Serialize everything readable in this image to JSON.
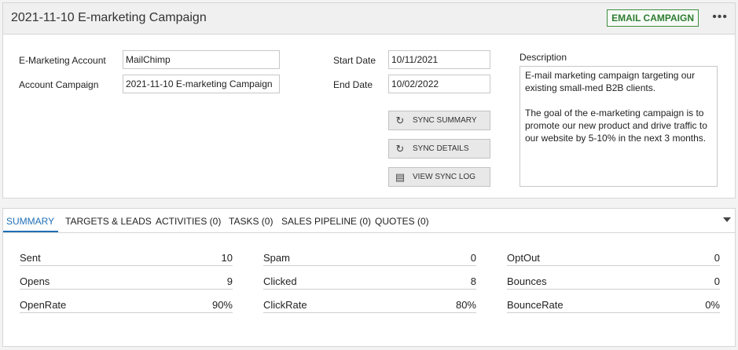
{
  "header": {
    "title": "2021-11-10 E-marketing Campaign",
    "badge": "EMAIL CAMPAIGN",
    "more_icon": "•••"
  },
  "form": {
    "emarketing_account_label": "E-Marketing Account",
    "emarketing_account_value": "MailChimp",
    "account_campaign_label": "Account Campaign",
    "account_campaign_value": "2021-11-10 E-marketing Campaign",
    "start_date_label": "Start Date",
    "start_date_value": "10/11/2021",
    "end_date_label": "End Date",
    "end_date_value": "10/02/2022",
    "description_label": "Description",
    "description_value": "E-mail marketing campaign targeting our existing small-med B2B clients.\n\nThe goal of the e-marketing campaign is to promote our new product and drive traffic to our website by 5-10% in the next 3 months."
  },
  "buttons": {
    "sync_summary": "SYNC SUMMARY",
    "sync_details": "SYNC DETAILS",
    "view_sync_log": "VIEW SYNC LOG"
  },
  "tabs": [
    {
      "label": "SUMMARY"
    },
    {
      "label": "TARGETS & LEADS"
    },
    {
      "label": "ACTIVITIES (0)"
    },
    {
      "label": "TASKS (0)"
    },
    {
      "label": "SALES PIPELINE (0)"
    },
    {
      "label": "QUOTES (0)"
    }
  ],
  "summary": {
    "sent": {
      "label": "Sent",
      "value": "10"
    },
    "opens": {
      "label": "Opens",
      "value": "9"
    },
    "openrate": {
      "label": "OpenRate",
      "value": "90%"
    },
    "spam": {
      "label": "Spam",
      "value": "0"
    },
    "clicked": {
      "label": "Clicked",
      "value": "8"
    },
    "clickrate": {
      "label": "ClickRate",
      "value": "80%"
    },
    "optout": {
      "label": "OptOut",
      "value": "0"
    },
    "bounces": {
      "label": "Bounces",
      "value": "0"
    },
    "bouncerate": {
      "label": "BounceRate",
      "value": "0%"
    }
  },
  "colors": {
    "accent": "#1f6fb5",
    "badge_green": "#2e7d32"
  }
}
